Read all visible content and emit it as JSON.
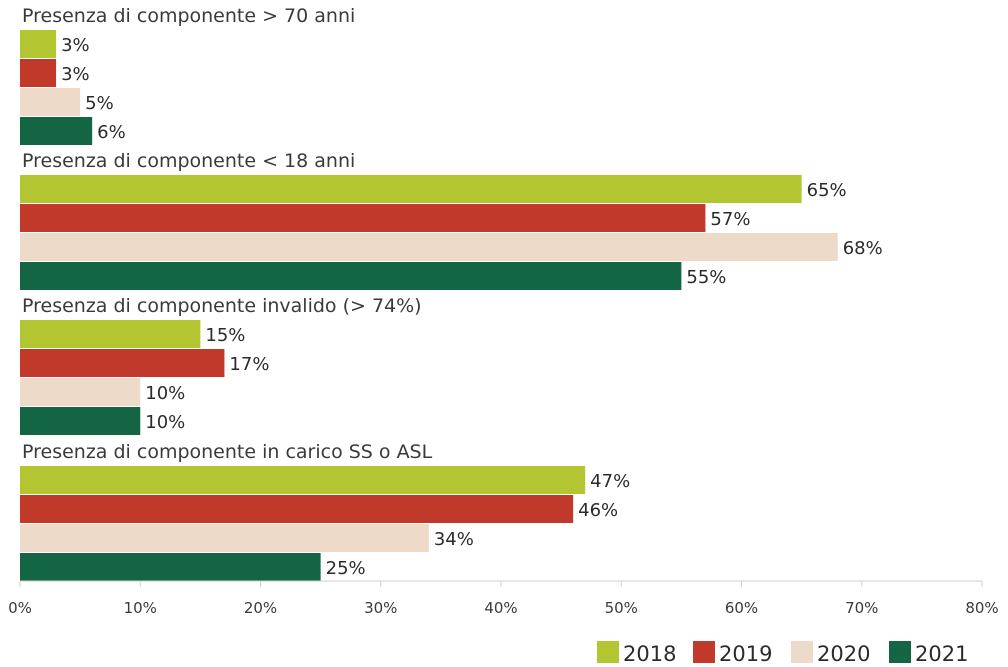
{
  "chart_data": {
    "type": "bar",
    "orientation": "horizontal",
    "categories": [
      "Presenza di componente > 70 anni",
      "Presenza di componente < 18 anni",
      "Presenza di componente invalido (> 74%)",
      "Presenza di componente in carico SS o ASL"
    ],
    "series": [
      {
        "name": "2018",
        "color": "#b3c631",
        "values": [
          3,
          65,
          15,
          47
        ],
        "labels": [
          "3%",
          "65%",
          "15%",
          "47%"
        ]
      },
      {
        "name": "2019",
        "color": "#c0392b",
        "values": [
          3,
          57,
          17,
          46
        ],
        "labels": [
          "3%",
          "57%",
          "17%",
          "46%"
        ]
      },
      {
        "name": "2020",
        "color": "#eddac8",
        "values": [
          5,
          68,
          10,
          34
        ],
        "labels": [
          "5%",
          "68%",
          "10%",
          "34%"
        ]
      },
      {
        "name": "2021",
        "color": "#136544",
        "values": [
          6,
          55,
          10,
          25
        ],
        "labels": [
          "6%",
          "55%",
          "10%",
          "25%"
        ]
      }
    ],
    "xlim": [
      0,
      80
    ],
    "x_ticks": [
      "0%",
      "10%",
      "20%",
      "30%",
      "40%",
      "50%",
      "60%",
      "70%",
      "80%"
    ],
    "legend_placement": "bottom-right",
    "grid": false
  }
}
